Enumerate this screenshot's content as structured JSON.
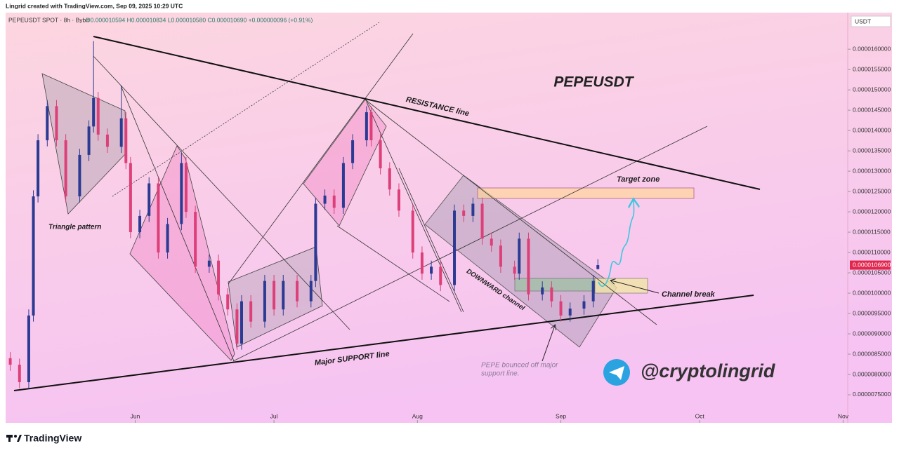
{
  "header": {
    "credit": "Lingrid created with TradingView.com, Sep 09, 2025 10:29 UTC",
    "symbol": "PEPEUSDT SPOT · 8h · Bybit",
    "ohlc": "O0.000010594 H0.000010834 L0.000010580 C0.000010690 +0.000000096 (+0.91%)"
  },
  "chart_data": {
    "type": "candlestick",
    "title": "PEPEUSDT",
    "currency": "USDT",
    "up_color": "#2b3a92",
    "down_color": "#dd3f78",
    "xlim": [
      -28,
      154
    ],
    "xticks": [
      {
        "value": 0,
        "label": "Jun"
      },
      {
        "value": 30,
        "label": "Jul"
      },
      {
        "value": 61,
        "label": "Aug"
      },
      {
        "value": 92,
        "label": "Sep"
      },
      {
        "value": 122,
        "label": "Oct"
      },
      {
        "value": 153,
        "label": "Nov"
      }
    ],
    "ylim": [
      6.81e-06,
      1.69e-05
    ],
    "yticks": [
      {
        "value": 1.6e-05,
        "label": "0.0000160000"
      },
      {
        "value": 1.55e-05,
        "label": "0.0000155000"
      },
      {
        "value": 1.5e-05,
        "label": "0.0000150000"
      },
      {
        "value": 1.45e-05,
        "label": "0.0000145000"
      },
      {
        "value": 1.4e-05,
        "label": "0.0000140000"
      },
      {
        "value": 1.35e-05,
        "label": "0.0000135000"
      },
      {
        "value": 1.3e-05,
        "label": "0.0000130000"
      },
      {
        "value": 1.25e-05,
        "label": "0.0000125000"
      },
      {
        "value": 1.2e-05,
        "label": "0.0000120000"
      },
      {
        "value": 1.15e-05,
        "label": "0.0000115000"
      },
      {
        "value": 1.1e-05,
        "label": "0.0000110000"
      },
      {
        "value": 1.05e-05,
        "label": "0.0000105000"
      },
      {
        "value": 1e-05,
        "label": "0.0000100000"
      },
      {
        "value": 9.5e-06,
        "label": "0.0000095000"
      },
      {
        "value": 9e-06,
        "label": "0.0000090000"
      },
      {
        "value": 8.5e-06,
        "label": "0.0000085000"
      },
      {
        "value": 8e-06,
        "label": "0.0000080000"
      },
      {
        "value": 7.5e-06,
        "label": "0.0000075000"
      }
    ],
    "last_price": {
      "value": 1.069e-05,
      "label": "0.0000106900",
      "color": "#e0284f"
    },
    "x": [
      -27,
      -25,
      -23,
      -22,
      -21,
      -19,
      -17,
      -15,
      -12,
      -10,
      -9,
      -8,
      -6,
      -3,
      -2,
      -1,
      1,
      3,
      5,
      7,
      10,
      11,
      13,
      16,
      18,
      20,
      22,
      23,
      25,
      28,
      30,
      32,
      35,
      38,
      39,
      41,
      43,
      45,
      47,
      50,
      51,
      53,
      55,
      57,
      60,
      62,
      64,
      66,
      69,
      71,
      73,
      75,
      77,
      79,
      82,
      83,
      85,
      88,
      90,
      92,
      94,
      97,
      99,
      100
    ],
    "open": [
      8.4e-06,
      8.24e-06,
      7.81e-06,
      9.45e-06,
      1.238e-05,
      1.376e-05,
      1.46e-05,
      1.376e-05,
      1.238e-05,
      1.34e-05,
      1.41e-05,
      1.48e-05,
      1.39e-05,
      1.36e-05,
      1.43e-05,
      1.32e-05,
      1.15e-05,
      1.19e-05,
      1.27e-05,
      1.1e-05,
      1.17e-05,
      1.32e-05,
      1.2e-05,
      1.065e-05,
      1.08e-05,
      9.97e-06,
      9.6e-06,
      8.76e-06,
      9.8e-06,
      9.3e-06,
      1.03e-05,
      9.6e-06,
      1.03e-05,
      9.8e-06,
      1.03e-05,
      1.22e-05,
      1.24e-05,
      1.21e-05,
      1.32e-05,
      1.376e-05,
      1.445e-05,
      1.376e-05,
      1.307e-05,
      1.255e-05,
      1.203e-05,
      1.1e-05,
      1.048e-05,
      1.065e-05,
      1.02e-05,
      1.203e-05,
      1.19e-05,
      1.22e-05,
      1.134e-05,
      1.117e-05,
      1.065e-05,
      1.048e-05,
      1.134e-05,
      9.97e-06,
      1.014e-05,
      9.8e-06,
      9.45e-06,
      9.62e-06,
      9.8e-06,
      1.0594e-05
    ],
    "high": [
      8.55e-06,
      8.39e-06,
      9.6e-06,
      1.253e-05,
      1.391e-05,
      1.475e-05,
      1.475e-05,
      1.391e-05,
      1.355e-05,
      1.425e-05,
      1.62e-05,
      1.495e-05,
      1.405e-05,
      1.51e-05,
      1.445e-05,
      1.335e-05,
      1.205e-05,
      1.285e-05,
      1.285e-05,
      1.185e-05,
      1.345e-05,
      1.335e-05,
      1.215e-05,
      1.095e-05,
      1.095e-05,
      1.012e-05,
      9.75e-06,
      9.95e-06,
      9.95e-06,
      1.045e-05,
      1.045e-05,
      1.045e-05,
      1.045e-05,
      1.045e-05,
      1.235e-05,
      1.255e-05,
      1.255e-05,
      1.335e-05,
      1.391e-05,
      1.46e-05,
      1.46e-05,
      1.391e-05,
      1.322e-05,
      1.27e-05,
      1.218e-05,
      1.115e-05,
      1.08e-05,
      1.08e-05,
      1.218e-05,
      1.218e-05,
      1.235e-05,
      1.235e-05,
      1.149e-05,
      1.132e-05,
      1.08e-05,
      1.149e-05,
      1.149e-05,
      1.029e-05,
      1.029e-05,
      9.95e-06,
      9.77e-06,
      9.95e-06,
      1.045e-05,
      1.0834e-05
    ],
    "low": [
      8.09e-06,
      7.66e-06,
      7.66e-06,
      9.3e-06,
      1.223e-05,
      1.361e-05,
      1.361e-05,
      1.223e-05,
      1.223e-05,
      1.325e-05,
      1.395e-05,
      1.375e-05,
      1.345e-05,
      1.345e-05,
      1.305e-05,
      1.135e-05,
      1.135e-05,
      1.175e-05,
      1.085e-05,
      1.085e-05,
      1.155e-05,
      1.185e-05,
      1.05e-05,
      1.05e-05,
      9.82e-06,
      9.45e-06,
      8.61e-06,
      8.61e-06,
      9.15e-06,
      9.15e-06,
      9.45e-06,
      9.45e-06,
      9.65e-06,
      9.65e-06,
      1.015e-05,
      1.205e-05,
      1.195e-05,
      1.195e-05,
      1.305e-05,
      1.361e-05,
      1.361e-05,
      1.292e-05,
      1.24e-05,
      1.188e-05,
      1.085e-05,
      1.033e-05,
      1.033e-05,
      1.005e-05,
      1.005e-05,
      1.175e-05,
      1.175e-05,
      1.119e-05,
      1.102e-05,
      1.05e-05,
      1.033e-05,
      1.033e-05,
      9.82e-06,
      9.82e-06,
      9.65e-06,
      9.3e-06,
      9.3e-06,
      9.47e-06,
      9.65e-06,
      1.058e-05
    ],
    "close": [
      8.24e-06,
      7.81e-06,
      9.45e-06,
      1.238e-05,
      1.376e-05,
      1.46e-05,
      1.376e-05,
      1.238e-05,
      1.34e-05,
      1.41e-05,
      1.48e-05,
      1.39e-05,
      1.36e-05,
      1.43e-05,
      1.32e-05,
      1.15e-05,
      1.19e-05,
      1.27e-05,
      1.1e-05,
      1.17e-05,
      1.32e-05,
      1.2e-05,
      1.065e-05,
      1.08e-05,
      9.97e-06,
      9.6e-06,
      8.76e-06,
      9.8e-06,
      9.3e-06,
      1.03e-05,
      9.6e-06,
      1.03e-05,
      9.8e-06,
      1.03e-05,
      1.22e-05,
      1.24e-05,
      1.21e-05,
      1.32e-05,
      1.376e-05,
      1.445e-05,
      1.376e-05,
      1.307e-05,
      1.255e-05,
      1.203e-05,
      1.1e-05,
      1.048e-05,
      1.065e-05,
      1.02e-05,
      1.203e-05,
      1.19e-05,
      1.22e-05,
      1.134e-05,
      1.117e-05,
      1.065e-05,
      1.048e-05,
      1.134e-05,
      9.97e-06,
      1.014e-05,
      9.8e-06,
      9.45e-06,
      9.62e-06,
      9.8e-06,
      1.03e-05,
      1.069e-05
    ],
    "annotations": [
      "RESISTANCE line",
      "Target zone",
      "Triangle pattern",
      "DOWNWARD channel",
      "Channel break",
      "Major SUPPORT line",
      "PEPE bounced off major",
      "support line.",
      "@cryptolingrid"
    ]
  },
  "footer": {
    "brand": "TradingView"
  }
}
